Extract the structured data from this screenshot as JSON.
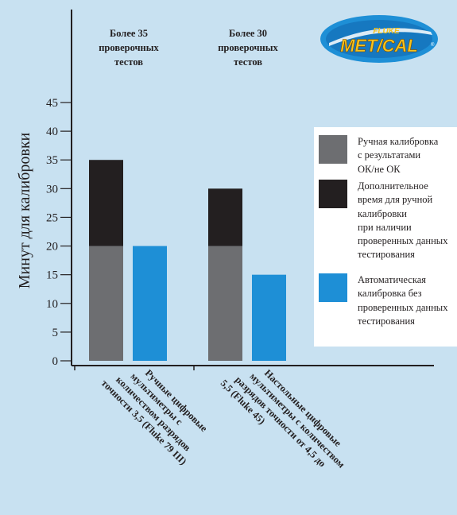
{
  "chart_data": {
    "type": "bar",
    "ylabel": "Минут для калибровки",
    "ylim": [
      0,
      45
    ],
    "y_ticks": [
      0,
      5,
      10,
      15,
      20,
      25,
      30,
      35,
      40,
      45
    ],
    "categories": [
      "Ручные цифровые мультиметры с количеством разрядов точности 3,5 (Fluke 79 III)",
      "Настольные цифровые мультиметры с количеством разрядов точности от 4,5 до 5,5 (Fluke 45)"
    ],
    "category_label_lines": [
      [
        "Ручные цифровые",
        "мультиметры с",
        "количеством разрядов",
        "точности 3,5 (Fluke 79 III)"
      ],
      [
        "Настольные цифровые",
        "мультиметры с количеством",
        "разрядов точности от 4,5 до",
        "5,5 (Fluke 45)"
      ]
    ],
    "group_notes": [
      [
        "Более 35",
        "проверочных",
        "тестов"
      ],
      [
        "Более 30",
        "проверочных",
        "тестов"
      ]
    ],
    "series": [
      {
        "name": "Ручная калибровка с результатами ОК/не ОК",
        "stack": "manual",
        "values": [
          20,
          20
        ],
        "color": "#6d6e71"
      },
      {
        "name": "Дополнительное время для ручной калибровки при наличии проверенных данных тестирования",
        "stack": "manual",
        "values": [
          15,
          10
        ],
        "color": "#231f20"
      },
      {
        "name": "Автоматическая калибровка без проверенных данных тестирования",
        "stack": "auto",
        "values": [
          20,
          15
        ],
        "color": "#1e8fd6"
      }
    ],
    "legend": {
      "position": "right",
      "items": [
        {
          "color": "#6d6e71",
          "lines": [
            "Ручная калибровка",
            "с результатами",
            "ОК/не ОК"
          ]
        },
        {
          "color": "#231f20",
          "lines": [
            "Дополнительное",
            "время для ручной",
            "калибровки",
            "при наличии",
            "проверенных данных",
            "тестирования"
          ]
        },
        {
          "color": "#1e8fd6",
          "lines": [
            "Автоматическая",
            "калибровка без",
            "проверенных данных",
            "тестирования"
          ]
        }
      ]
    },
    "grid": false
  },
  "logo": {
    "top_text": "FLUKE",
    "main_text": "MET/CAL",
    "mark": "®"
  },
  "colors": {
    "background": "#c8e1f1",
    "axis": "#231f20",
    "logo_blue": "#1e8fd6",
    "logo_yellow": "#f6c21c"
  }
}
